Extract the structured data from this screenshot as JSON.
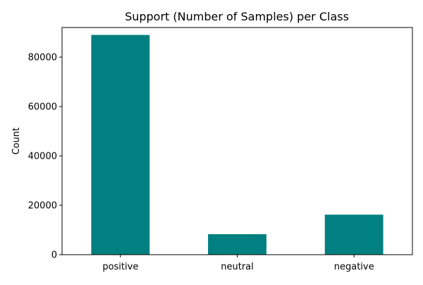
{
  "chart_data": {
    "type": "bar",
    "title": "Support (Number of Samples) per Class",
    "xlabel": "",
    "ylabel": "Count",
    "categories": [
      "positive",
      "neutral",
      "negative"
    ],
    "values": [
      89000,
      8300,
      16200
    ],
    "ylim": [
      0,
      92000
    ],
    "yticks": [
      0,
      20000,
      40000,
      60000,
      80000
    ],
    "bar_color": "#008080",
    "grid": false,
    "legend": "none"
  }
}
